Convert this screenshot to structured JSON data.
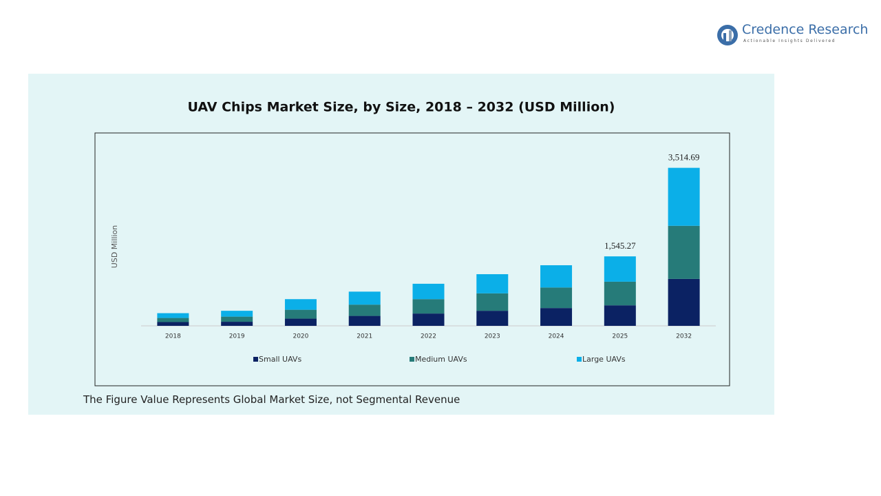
{
  "logo": {
    "name": "Credence Research",
    "tagline": "Actionable Insights Delivered"
  },
  "footnote": "The Figure Value Represents Global Market Size, not Segmental Revenue",
  "chart_data": {
    "type": "stacked_bar",
    "title": "UAV Chips Market Size, by Size, 2018 – 2032 (USD Million)",
    "y_label": "USD Million",
    "categories": [
      "2018",
      "2019",
      "2020",
      "2021",
      "2022",
      "2023",
      "2024",
      "2025",
      "2032"
    ],
    "series": [
      {
        "name": "Small UAVs",
        "color": "#0b2263",
        "values": [
          84,
          91,
          160,
          221,
          274,
          335,
          396,
          456.71,
          1043.6
        ]
      },
      {
        "name": "Medium UAVs",
        "color": "#267b79",
        "values": [
          91,
          114,
          198,
          251,
          320,
          388,
          457,
          525.21,
          1181.74
        ]
      },
      {
        "name": "Large UAVs",
        "color": "#0bafe8",
        "values": [
          107,
          130,
          236,
          289,
          342,
          426,
          495,
          563.35,
          1289.35
        ]
      }
    ],
    "total_labels": [
      null,
      null,
      null,
      null,
      null,
      null,
      null,
      "1,545.27",
      "3,514.69"
    ],
    "ylim": [
      0,
      3800
    ],
    "legend": "bottom"
  }
}
